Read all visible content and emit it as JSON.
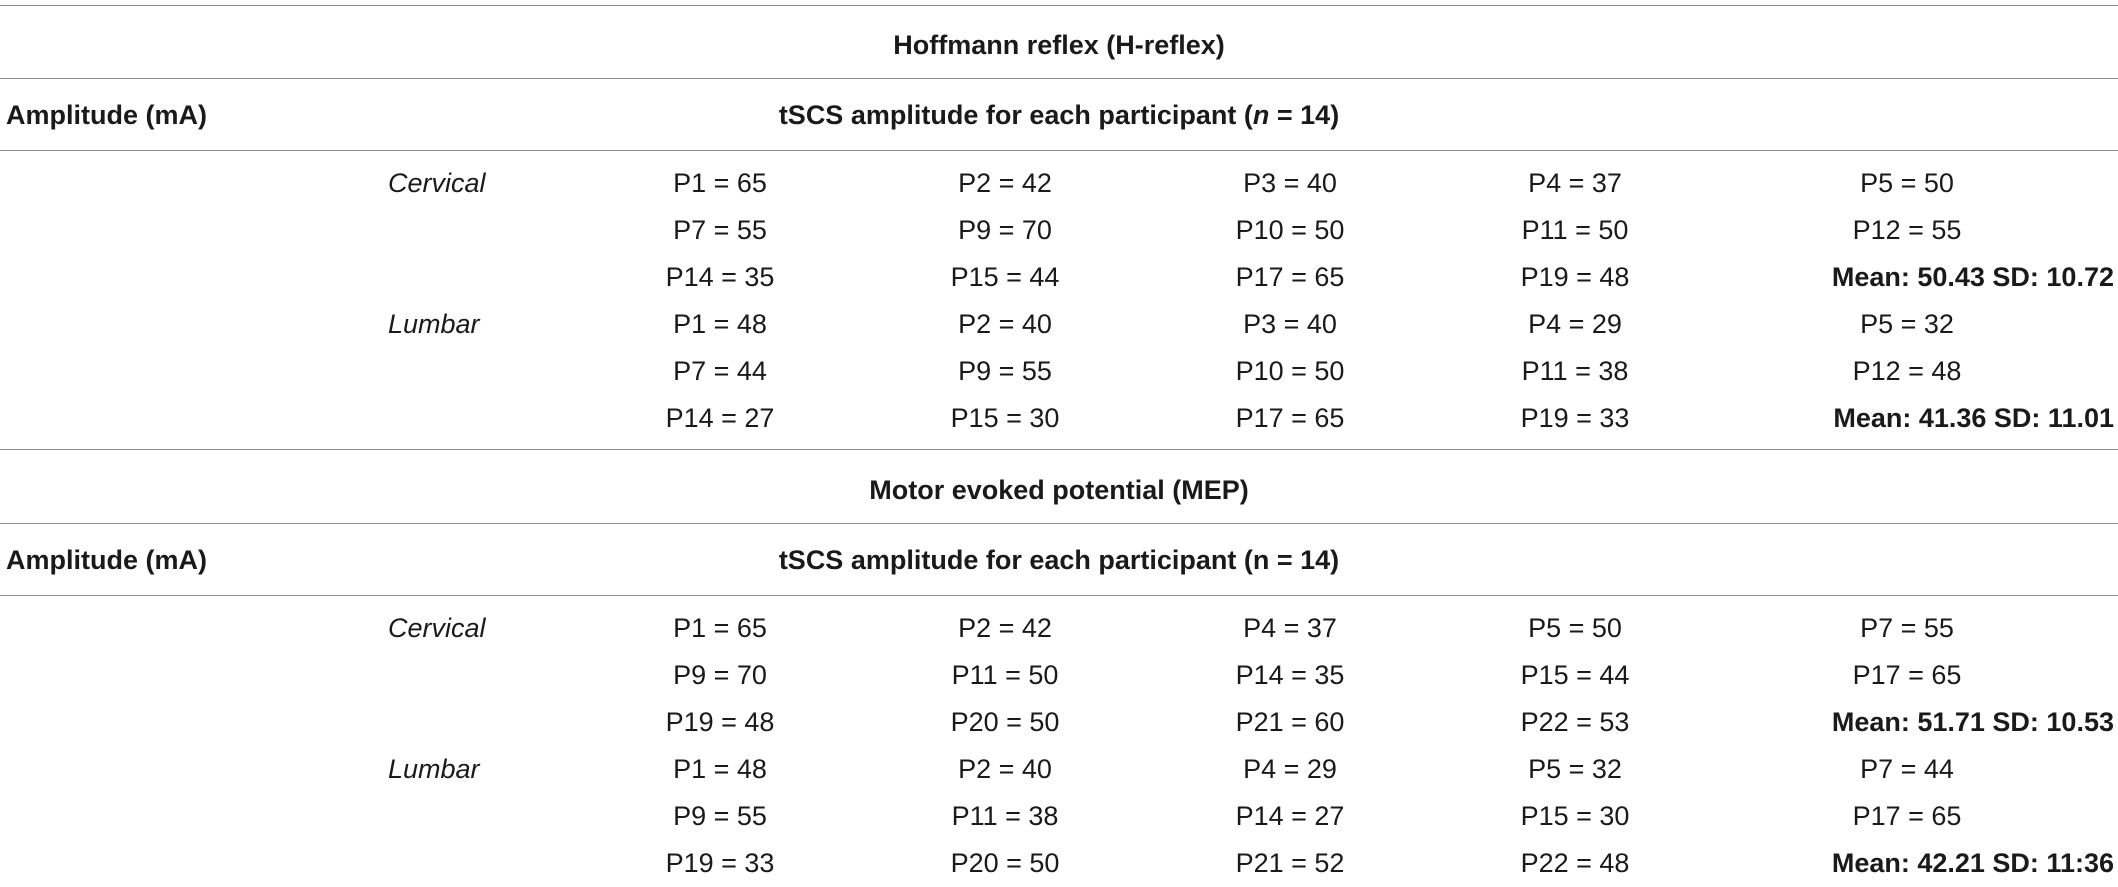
{
  "sections": [
    {
      "title": "Hoffmann reflex (H-reflex)",
      "amplitude_label": "Amplitude (mA)",
      "tscs_label_prefix": "tSCS amplitude for each participant (",
      "tscs_label_n": "n",
      "tscs_label_suffix": " = 14)",
      "regions": [
        {
          "name": "Cervical",
          "rows": [
            [
              "P1 = 65",
              "P2 = 42",
              "P3 = 40",
              "P4 = 37",
              "P5 = 50"
            ],
            [
              "P7 = 55",
              "P9 = 70",
              "P10 = 50",
              "P11 = 50",
              "P12 = 55"
            ],
            [
              "P14 = 35",
              "P15 = 44",
              "P17 = 65",
              "P19 = 48",
              "Mean: 50.43 SD: 10.72"
            ]
          ]
        },
        {
          "name": "Lumbar",
          "rows": [
            [
              "P1 = 48",
              "P2 = 40",
              "P3 = 40",
              "P4 = 29",
              "P5 = 32"
            ],
            [
              "P7 = 44",
              "P9 = 55",
              "P10 = 50",
              "P11 = 38",
              "P12 = 48"
            ],
            [
              "P14 = 27",
              "P15 = 30",
              "P17 = 65",
              "P19 = 33",
              "Mean: 41.36 SD: 11.01"
            ]
          ]
        }
      ]
    },
    {
      "title": "Motor evoked potential (MEP)",
      "amplitude_label": "Amplitude (mA)",
      "tscs_label": "tSCS amplitude for each participant (n = 14)",
      "regions": [
        {
          "name": "Cervical",
          "rows": [
            [
              "P1 = 65",
              "P2 = 42",
              "P4 = 37",
              "P5 = 50",
              "P7 = 55"
            ],
            [
              "P9 = 70",
              "P11 = 50",
              "P14 = 35",
              "P15 = 44",
              "P17 = 65"
            ],
            [
              "P19 = 48",
              "P20 = 50",
              "P21 = 60",
              "P22 = 53",
              "Mean: 51.71 SD: 10.53"
            ]
          ]
        },
        {
          "name": "Lumbar",
          "rows": [
            [
              "P1 = 48",
              "P2 = 40",
              "P4 = 29",
              "P5 = 32",
              "P7 = 44"
            ],
            [
              "P9 = 55",
              "P11 = 38",
              "P14 = 27",
              "P15 = 30",
              "P17 = 65"
            ],
            [
              "P19 = 33",
              "P20 = 50",
              "P21 = 52",
              "P22 = 48",
              "Mean: 42.21 SD: 11:36"
            ]
          ]
        }
      ]
    }
  ]
}
